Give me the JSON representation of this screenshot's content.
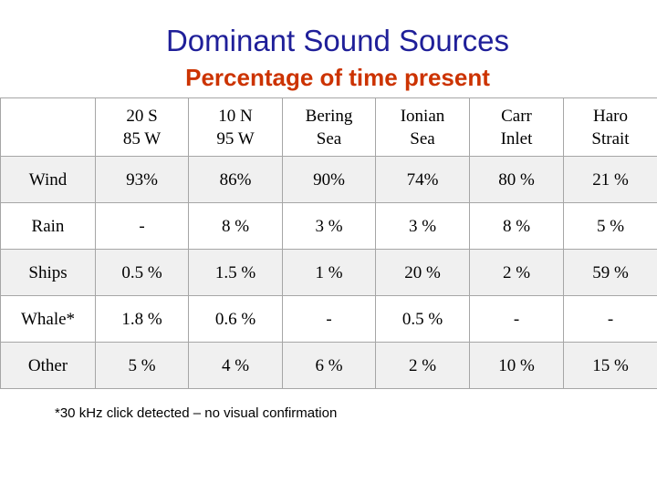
{
  "title": "Dominant Sound Sources",
  "subtitle": "Percentage of time present",
  "columns": [
    {
      "line1": "20 S",
      "line2": "85 W"
    },
    {
      "line1": "10 N",
      "line2": "95 W"
    },
    {
      "line1": "Bering",
      "line2": "Sea"
    },
    {
      "line1": "Ionian",
      "line2": "Sea"
    },
    {
      "line1": "Carr",
      "line2": "Inlet"
    },
    {
      "line1": "Haro",
      "line2": "Strait"
    }
  ],
  "rows": [
    {
      "label": "Wind",
      "values": [
        "93%",
        "86%",
        "90%",
        "74%",
        "80 %",
        "21 %"
      ]
    },
    {
      "label": "Rain",
      "values": [
        "-",
        "8 %",
        "3 %",
        "3 %",
        "8 %",
        "5 %"
      ]
    },
    {
      "label": "Ships",
      "values": [
        "0.5 %",
        "1.5 %",
        "1 %",
        "20 %",
        "2 %",
        "59 %"
      ]
    },
    {
      "label": "Whale*",
      "values": [
        "1.8 %",
        "0.6 %",
        "-",
        "0.5 %",
        "-",
        "-"
      ]
    },
    {
      "label": "Other",
      "values": [
        "5 %",
        "4 %",
        "6 %",
        "2 %",
        "10 %",
        "15 %"
      ]
    }
  ],
  "footnote": "*30 kHz click detected – no visual confirmation"
}
